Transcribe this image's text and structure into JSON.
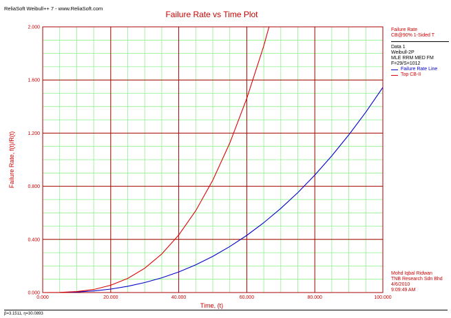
{
  "header": {
    "brand": "ReliaSoft Weibull++ 7 - www.ReliaSoft.com"
  },
  "legend": {
    "title_lines": [
      "Failure Rate",
      "CB@90% 1-Sided T"
    ],
    "data_lines": [
      "Data 1",
      "Weibull-2P",
      "MLE RRM MED FM",
      "F=29/S=1012"
    ],
    "series_labels": [
      "Failure Rate Line",
      "Top CB-II"
    ]
  },
  "author": {
    "lines": [
      "Mohd Iqbal Ridwan",
      "TNB Research Sdn Bhd",
      "4/6/2010",
      "9:09:49 AM"
    ]
  },
  "footer": {
    "params": "β=3.1511, η=30.0893"
  },
  "colors": {
    "major_grid": "#aa0000",
    "minor_grid": "#8ef08e",
    "failure_rate_line": "#0000cc",
    "top_cb_line": "#dd0000",
    "text_red": "#cc0000"
  },
  "chart_data": {
    "type": "line",
    "title": "Failure Rate vs Time Plot",
    "xlabel": "Time, (t)",
    "ylabel": "Failure Rate, f(t)/R(t)",
    "xlim": [
      0,
      100
    ],
    "ylim": [
      0,
      2
    ],
    "x_ticks": [
      "0.000",
      "20.000",
      "40.000",
      "60.000",
      "80.000",
      "100.000"
    ],
    "y_ticks": [
      "0.000",
      "0.400",
      "0.800",
      "1.200",
      "1.600",
      "2.000"
    ],
    "x_tick_values": [
      0,
      20,
      40,
      60,
      80,
      100
    ],
    "y_tick_values": [
      0,
      0.4,
      0.8,
      1.2,
      1.6,
      2.0
    ],
    "grid": true,
    "legend_position": "right",
    "series": [
      {
        "name": "Failure Rate Line",
        "color": "#0000cc",
        "x": [
          0,
          5,
          10,
          15,
          20,
          25,
          30,
          35,
          40,
          45,
          50,
          55,
          60,
          65,
          70,
          75,
          80,
          85,
          90,
          95,
          100
        ],
        "y": [
          0,
          0.0006,
          0.004,
          0.012,
          0.026,
          0.047,
          0.075,
          0.111,
          0.155,
          0.209,
          0.272,
          0.346,
          0.43,
          0.526,
          0.633,
          0.752,
          0.884,
          1.029,
          1.187,
          1.358,
          1.544
        ]
      },
      {
        "name": "Top CB-II",
        "color": "#dd0000",
        "x": [
          0,
          5,
          10,
          15,
          20,
          25,
          30,
          35,
          40,
          45,
          50,
          55,
          60,
          65,
          70
        ],
        "y": [
          0,
          0.0009,
          0.007,
          0.023,
          0.055,
          0.106,
          0.183,
          0.29,
          0.433,
          0.616,
          0.845,
          1.125,
          1.461,
          1.857,
          2.32
        ]
      }
    ]
  }
}
